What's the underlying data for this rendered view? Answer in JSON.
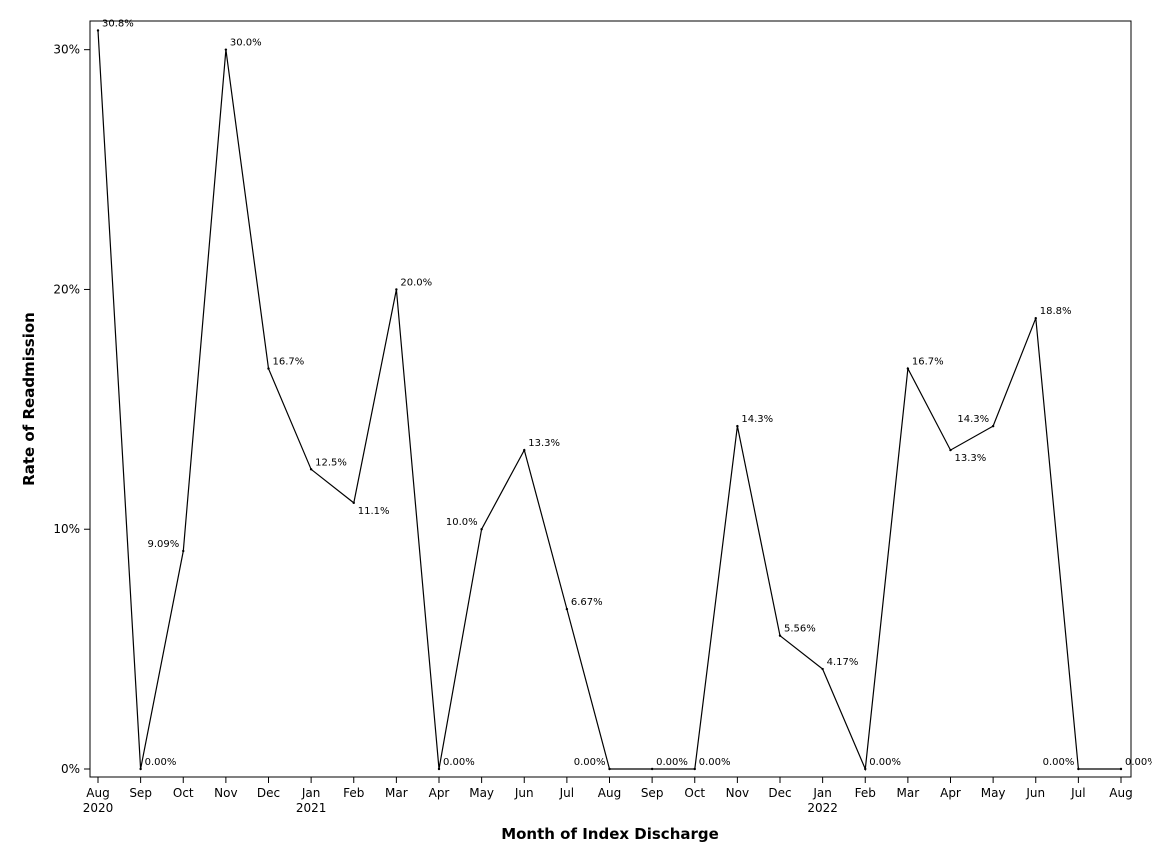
{
  "chart_data": {
    "type": "line",
    "title": "",
    "xlabel": "Month of Index Discharge",
    "ylabel": "Rate of Readmission",
    "ylim": [
      0,
      30.8
    ],
    "yticks": [
      {
        "value": 0,
        "label": "0%"
      },
      {
        "value": 10,
        "label": "10%"
      },
      {
        "value": 20,
        "label": "20%"
      },
      {
        "value": 30,
        "label": "30%"
      }
    ],
    "grid": false,
    "legend": "none",
    "line_color": "#000000",
    "x": [
      "2020-08",
      "2020-09",
      "2020-10",
      "2020-11",
      "2020-12",
      "2021-01",
      "2021-02",
      "2021-03",
      "2021-04",
      "2021-05",
      "2021-06",
      "2021-07",
      "2021-08",
      "2021-09",
      "2021-10",
      "2021-11",
      "2021-12",
      "2022-01",
      "2022-02",
      "2022-03",
      "2022-04",
      "2022-05",
      "2022-06",
      "2022-07",
      "2022-08"
    ],
    "month_labels": [
      "Aug",
      "Sep",
      "Oct",
      "Nov",
      "Dec",
      "Jan",
      "Feb",
      "Mar",
      "Apr",
      "May",
      "Jun",
      "Jul",
      "Aug",
      "Sep",
      "Oct",
      "Nov",
      "Dec",
      "Jan",
      "Feb",
      "Mar",
      "Apr",
      "May",
      "Jun",
      "Jul",
      "Aug"
    ],
    "year_labels": [
      {
        "month": "2020-08",
        "label": "2020"
      },
      {
        "month": "2021-01",
        "label": "2021"
      },
      {
        "month": "2022-01",
        "label": "2022"
      }
    ],
    "series": [
      {
        "values": [
          30.8,
          0,
          9.09,
          30.0,
          16.7,
          12.5,
          11.1,
          20.0,
          0,
          10.0,
          13.3,
          6.67,
          0,
          0,
          0,
          14.3,
          5.56,
          4.17,
          0,
          16.7,
          13.3,
          14.3,
          18.8,
          0,
          0
        ],
        "data_labels": [
          "30.8%",
          "0.00%",
          "9.09%",
          "30.0%",
          "16.7%",
          "12.5%",
          "11.1%",
          "20.0%",
          "0.00%",
          "10.0%",
          "13.3%",
          "6.67%",
          "0.00%",
          "0.00%",
          "0.00%",
          "14.3%",
          "5.56%",
          "4.17%",
          "0.00%",
          "16.7%",
          "13.3%",
          "14.3%",
          "18.8%",
          "0.00%",
          "0.00%"
        ]
      }
    ]
  }
}
